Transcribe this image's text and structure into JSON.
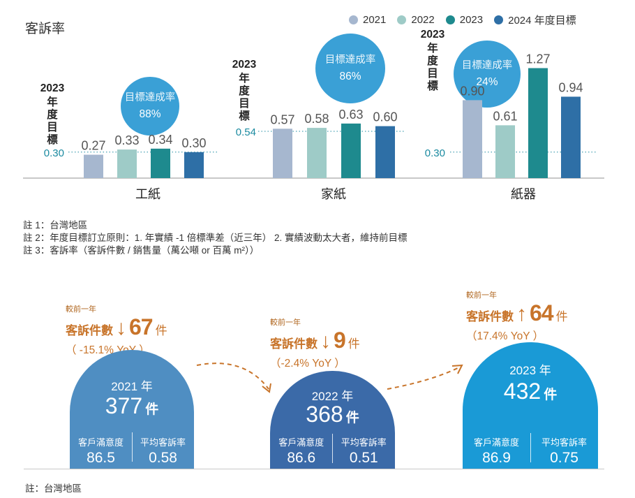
{
  "title": "客訴率",
  "legend": [
    {
      "label": "2021",
      "color": "#a6b7cf"
    },
    {
      "label": "2022",
      "color": "#9ecbc7"
    },
    {
      "label": "2023",
      "color": "#1e8a8e"
    },
    {
      "label": "2024 年度目標",
      "color": "#2e6fa6"
    }
  ],
  "chart_data": {
    "type": "bar",
    "title": "客訴率",
    "series": [
      {
        "name": "2021",
        "values": [
          0.27,
          0.57,
          0.9
        ]
      },
      {
        "name": "2022",
        "values": [
          0.33,
          0.58,
          0.61
        ]
      },
      {
        "name": "2023",
        "values": [
          0.34,
          0.63,
          1.27
        ]
      },
      {
        "name": "2024 年度目標",
        "values": [
          0.3,
          0.6,
          0.94
        ]
      }
    ],
    "categories": [
      "工紙",
      "家紙",
      "紙器"
    ],
    "panels": [
      {
        "category": "工紙",
        "values": [
          0.27,
          0.33,
          0.34,
          0.3
        ],
        "labels": [
          "0.27",
          "0.33",
          "0.34",
          "0.30"
        ],
        "target": 0.3,
        "target_label": "0.30",
        "target_caption": "2023 年度目標",
        "bubble_title": "目標達成率",
        "bubble_value": "88%"
      },
      {
        "category": "家紙",
        "values": [
          0.57,
          0.58,
          0.63,
          0.6
        ],
        "labels": [
          "0.57",
          "0.58",
          "0.63",
          "0.60"
        ],
        "target": 0.54,
        "target_label": "0.54",
        "target_caption": "2023 年度目標",
        "bubble_title": "目標達成率",
        "bubble_value": "86%"
      },
      {
        "category": "紙器",
        "values": [
          0.9,
          0.61,
          1.27,
          0.94
        ],
        "labels": [
          "0.90",
          "0.61",
          "1.27",
          "0.94"
        ],
        "target": 0.3,
        "target_label": "0.30",
        "target_caption": "2023 年度目標",
        "bubble_title": "目標達成率",
        "bubble_value": "24%"
      }
    ]
  },
  "notes": [
    "註 1：台灣地區",
    "註 2：年度目標訂立原則：1. 年實績 -1 倍標準差（近三年） 2. 實績波動太大者，維持前目標",
    "註 3：客訴率（客訴件數 / 銷售量（萬公噸 or 百萬 m²））"
  ],
  "years": [
    {
      "year": "2021 年",
      "count": "377",
      "unit": "件",
      "sat_label": "客戶滿意度",
      "sat_value": "86.5",
      "rate_label": "平均客訴率",
      "rate_value": "0.58",
      "color": "#4f8ec2",
      "yoy_pre": "較前一年",
      "yoy_label": "客訴件數",
      "yoy_arrow": "↓",
      "yoy_num": "67",
      "yoy_unit": "件",
      "yoy_pct": "（ -15.1% YoY ）"
    },
    {
      "year": "2022 年",
      "count": "368",
      "unit": "件",
      "sat_label": "客戶滿意度",
      "sat_value": "86.6",
      "rate_label": "平均客訴率",
      "rate_value": "0.51",
      "color": "#3b6aa8",
      "yoy_pre": "較前一年",
      "yoy_label": "客訴件數",
      "yoy_arrow": "↓",
      "yoy_num": "9",
      "yoy_unit": "件",
      "yoy_pct": "（-2.4% YoY ）"
    },
    {
      "year": "2023 年",
      "count": "432",
      "unit": "件",
      "sat_label": "客戶滿意度",
      "sat_value": "86.9",
      "rate_label": "平均客訴率",
      "rate_value": "0.75",
      "color": "#1a9ad6",
      "yoy_pre": "較前一年",
      "yoy_label": "客訴件數",
      "yoy_arrow": "↑",
      "yoy_num": "64",
      "yoy_unit": "件",
      "yoy_pct": "（17.4% YoY ）"
    }
  ],
  "footnote": "註：台灣地區",
  "colors": {
    "bubble": "#3aa0d6",
    "accent": "#c8742a",
    "target_line": "#1a8aa0"
  }
}
